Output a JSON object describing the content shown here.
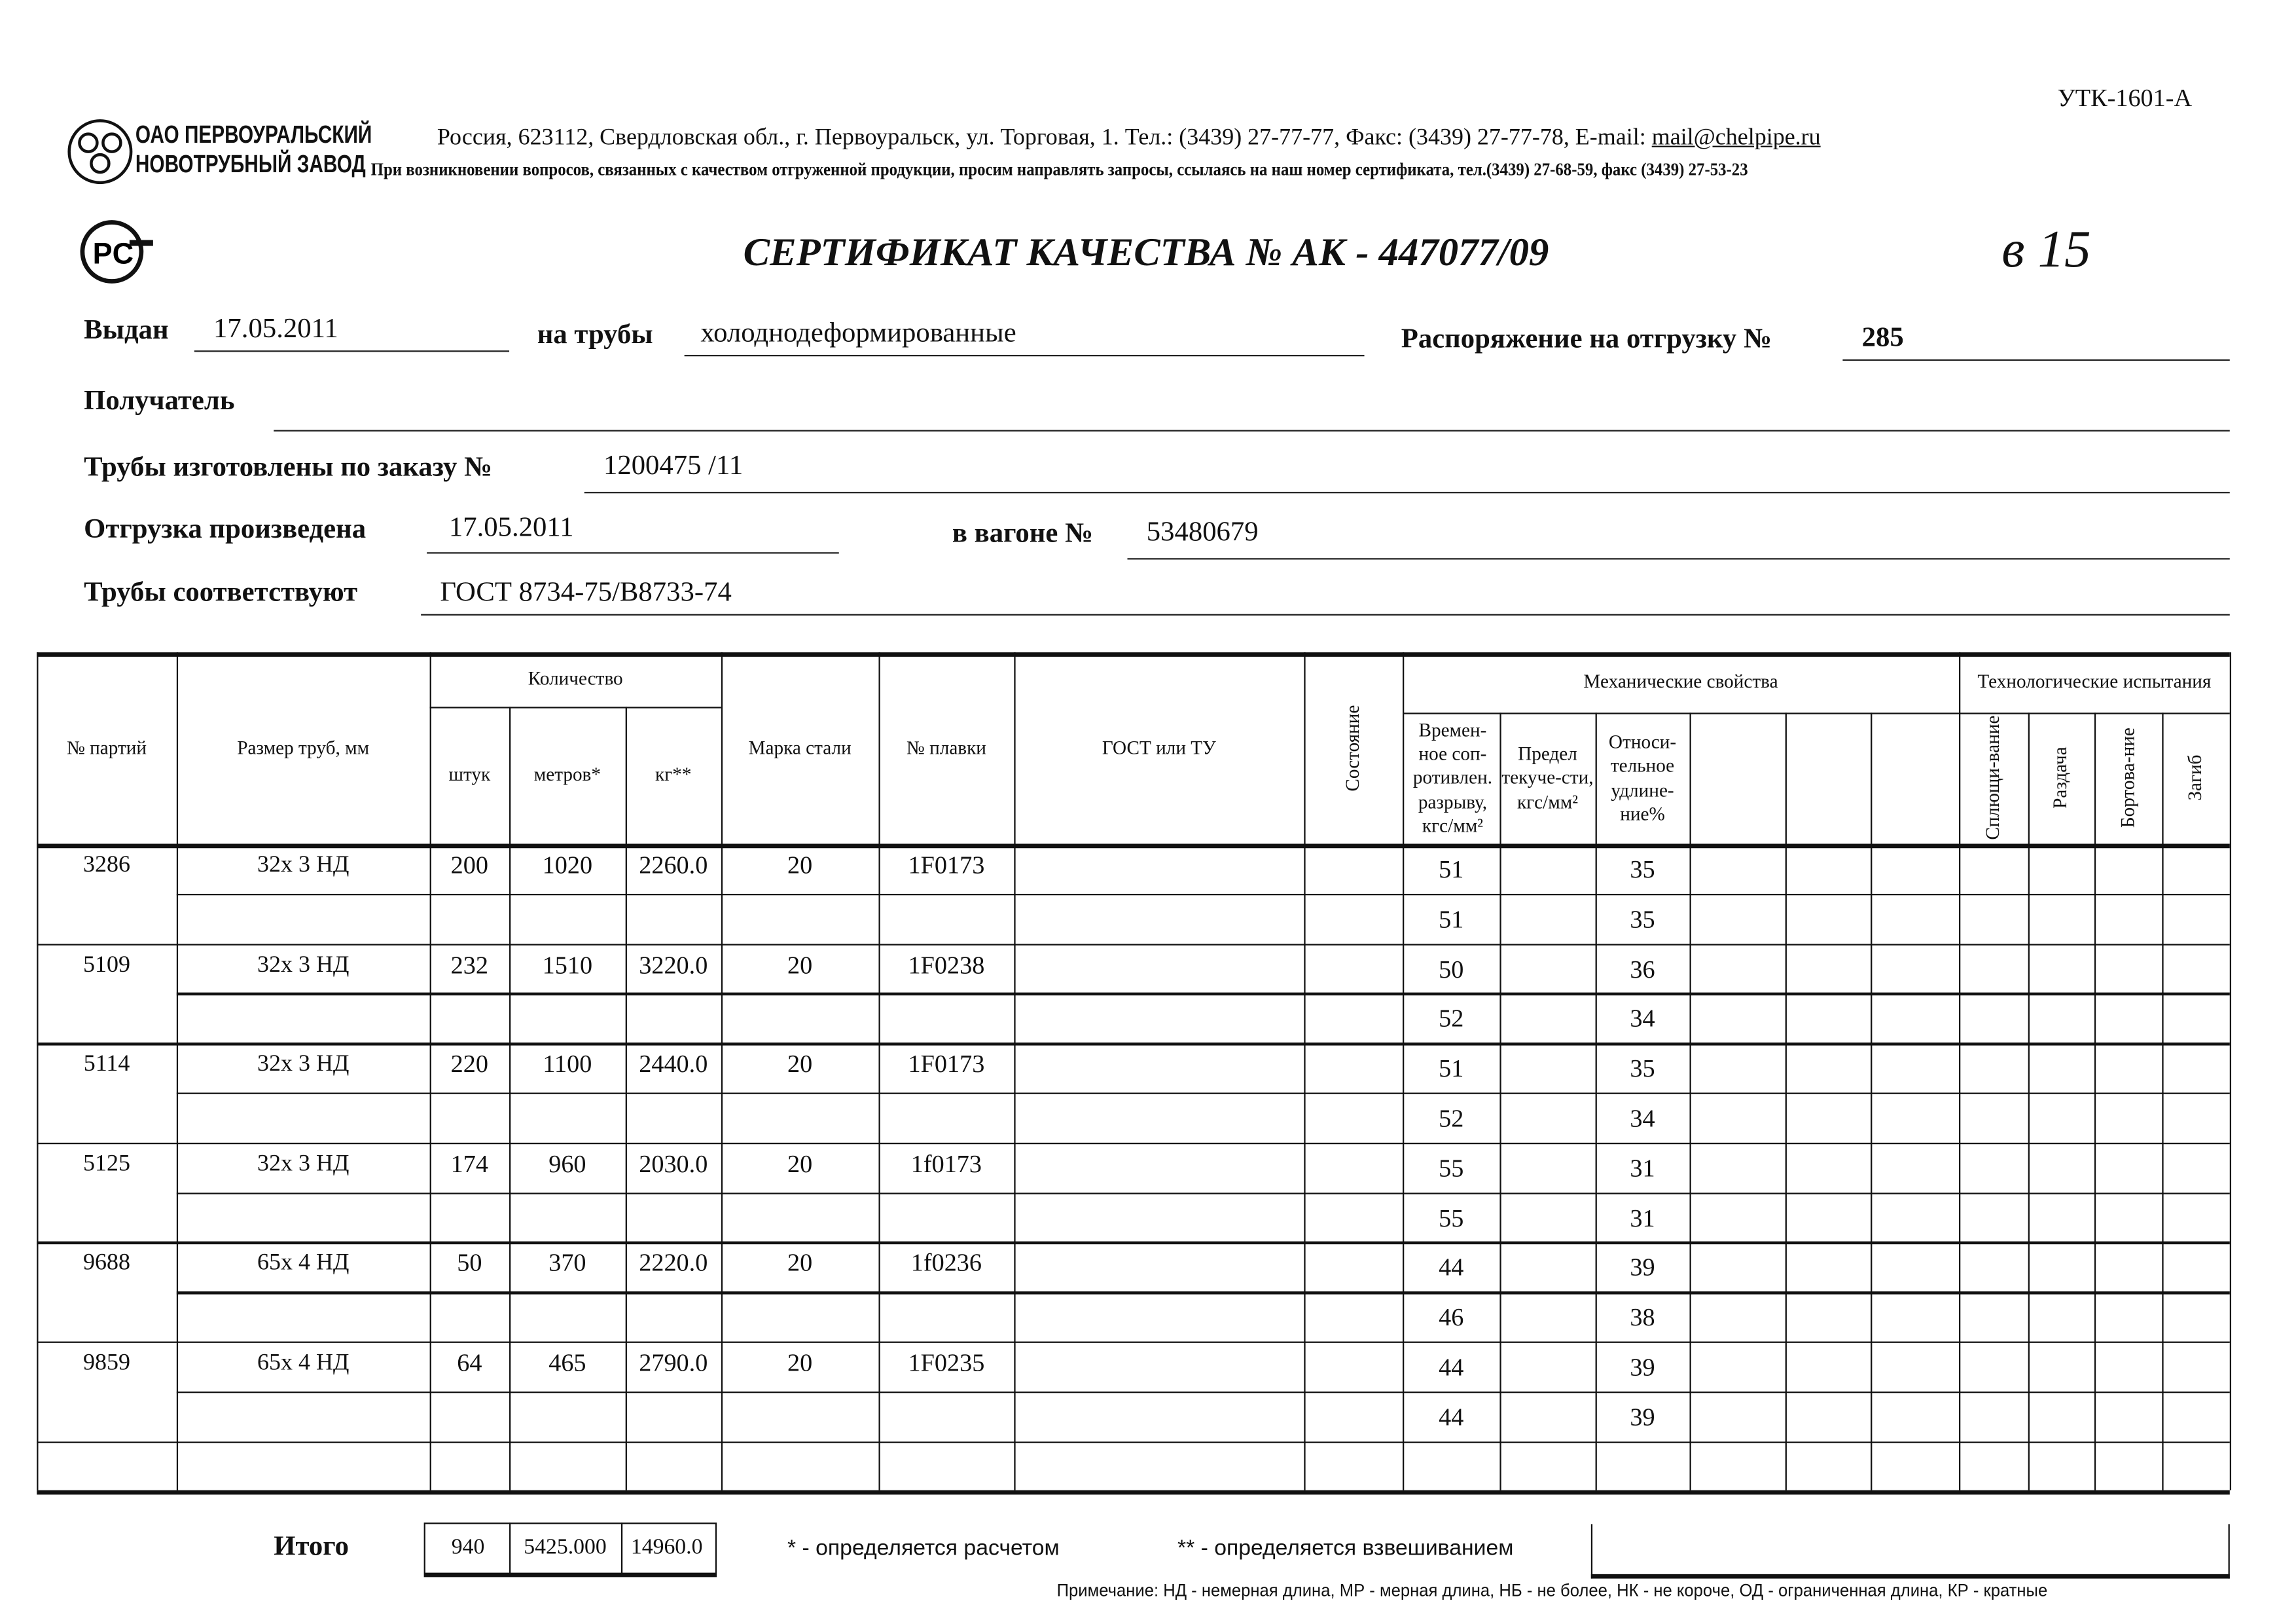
{
  "form_code": "УТК-1601-А",
  "company": {
    "line1": "ОАО ПЕРВОУРАЛЬСКИЙ",
    "line2": "НОВОТРУБНЫЙ ЗАВОД"
  },
  "address_prefix": "Россия, 623112, Свердловская обл., г. Первоуральск, ул. Торговая, 1. Тел.: (3439) 27-77-77, Факс: (3439) 27-77-78,  E-mail: ",
  "email": "mail@chelpipe.ru",
  "notice": "При возникновении вопросов, связанных с качеством отгруженной продукции, просим направлять запросы, ссылаясь на наш номер сертификата, тел.(3439) 27-68-59, факс (3439) 27-53-23",
  "title": "СЕРТИФИКАТ КАЧЕСТВА   №  АК -  447077/09",
  "handwritten_note": "в 15",
  "fields": {
    "issued_label": "Выдан",
    "issued": "17.05.2011",
    "pipes_label": "на трубы",
    "pipes": "холоднодеформированные",
    "order_ship_label": "Распоряжение на отгрузку №",
    "order_ship": "285",
    "recipient_label": "Получатель",
    "recipient": "",
    "made_by_order_label": "Трубы изготовлены по заказу №",
    "made_by_order": "1200475   /11",
    "shipped_label": "Отгрузка произведена",
    "shipped": "17.05.2011",
    "wagon_label": "в вагоне №",
    "wagon": "53480679",
    "conform_label": "Трубы соответствуют",
    "conform": "ГОСТ 8734-75/В8733-74"
  },
  "table": {
    "headers": {
      "batch": "№ партий",
      "size": "Размер труб, мм",
      "quantity": "Количество",
      "pcs": "штук",
      "meters": "метров*",
      "kg": "кг**",
      "steel": "Марка стали",
      "heat": "№ плавки",
      "gost": "ГОСТ или ТУ",
      "state": "Состояние",
      "mech": "Механические свойства",
      "tensile": "Времен-ное соп-ротивлен. разрыву, кгс/мм²",
      "yield": "Предел текуче-сти, кгс/мм²",
      "elong": "Относи-тельное удлине-ние%",
      "tech": "Технологические испытания",
      "flatten": "Сплющи-вание",
      "expand": "Раздача",
      "flange": "Бортова-ние",
      "bend": "Загиб"
    },
    "batches": [
      {
        "batch": "3286",
        "size": "32х 3 НД",
        "pcs": "200",
        "meters": "1020",
        "kg": "2260.0",
        "steel": "20",
        "heat": "1F0173"
      },
      {
        "batch": "5109",
        "size": "32х 3 НД",
        "pcs": "232",
        "meters": "1510",
        "kg": "3220.0",
        "steel": "20",
        "heat": "1F0238"
      },
      {
        "batch": "5114",
        "size": "32х 3 НД",
        "pcs": "220",
        "meters": "1100",
        "kg": "2440.0",
        "steel": "20",
        "heat": "1F0173"
      },
      {
        "batch": "5125",
        "size": "32х 3 НД",
        "pcs": "174",
        "meters": "960",
        "kg": "2030.0",
        "steel": "20",
        "heat": "1f0173"
      },
      {
        "batch": "9688",
        "size": "65х 4 НД",
        "pcs": "50",
        "meters": "370",
        "kg": "2220.0",
        "steel": "20",
        "heat": "1f0236"
      },
      {
        "batch": "9859",
        "size": "65х 4 НД",
        "pcs": "64",
        "meters": "465",
        "kg": "2790.0",
        "steel": "20",
        "heat": "1F0235"
      }
    ],
    "mech_rows": [
      {
        "tensile": "51",
        "elong": "35"
      },
      {
        "tensile": "51",
        "elong": "35"
      },
      {
        "tensile": "50",
        "elong": "36"
      },
      {
        "tensile": "52",
        "elong": "34"
      },
      {
        "tensile": "51",
        "elong": "35"
      },
      {
        "tensile": "52",
        "elong": "34"
      },
      {
        "tensile": "55",
        "elong": "31"
      },
      {
        "tensile": "55",
        "elong": "31"
      },
      {
        "tensile": "44",
        "elong": "39"
      },
      {
        "tensile": "46",
        "elong": "38"
      },
      {
        "tensile": "44",
        "elong": "39"
      },
      {
        "tensile": "44",
        "elong": "39"
      }
    ],
    "total_label": "Итого",
    "total": {
      "pcs": "940",
      "meters": "5425.000",
      "kg": "14960.0"
    },
    "footnote1": "* - определяется расчетом",
    "footnote2": "** - определяется взвешиванием"
  },
  "remark": "Примечание: НД - немерная длина, МР - мерная длина, НБ - не более, НК - не короче, ОД - ограниченная длина, КР - кратные"
}
